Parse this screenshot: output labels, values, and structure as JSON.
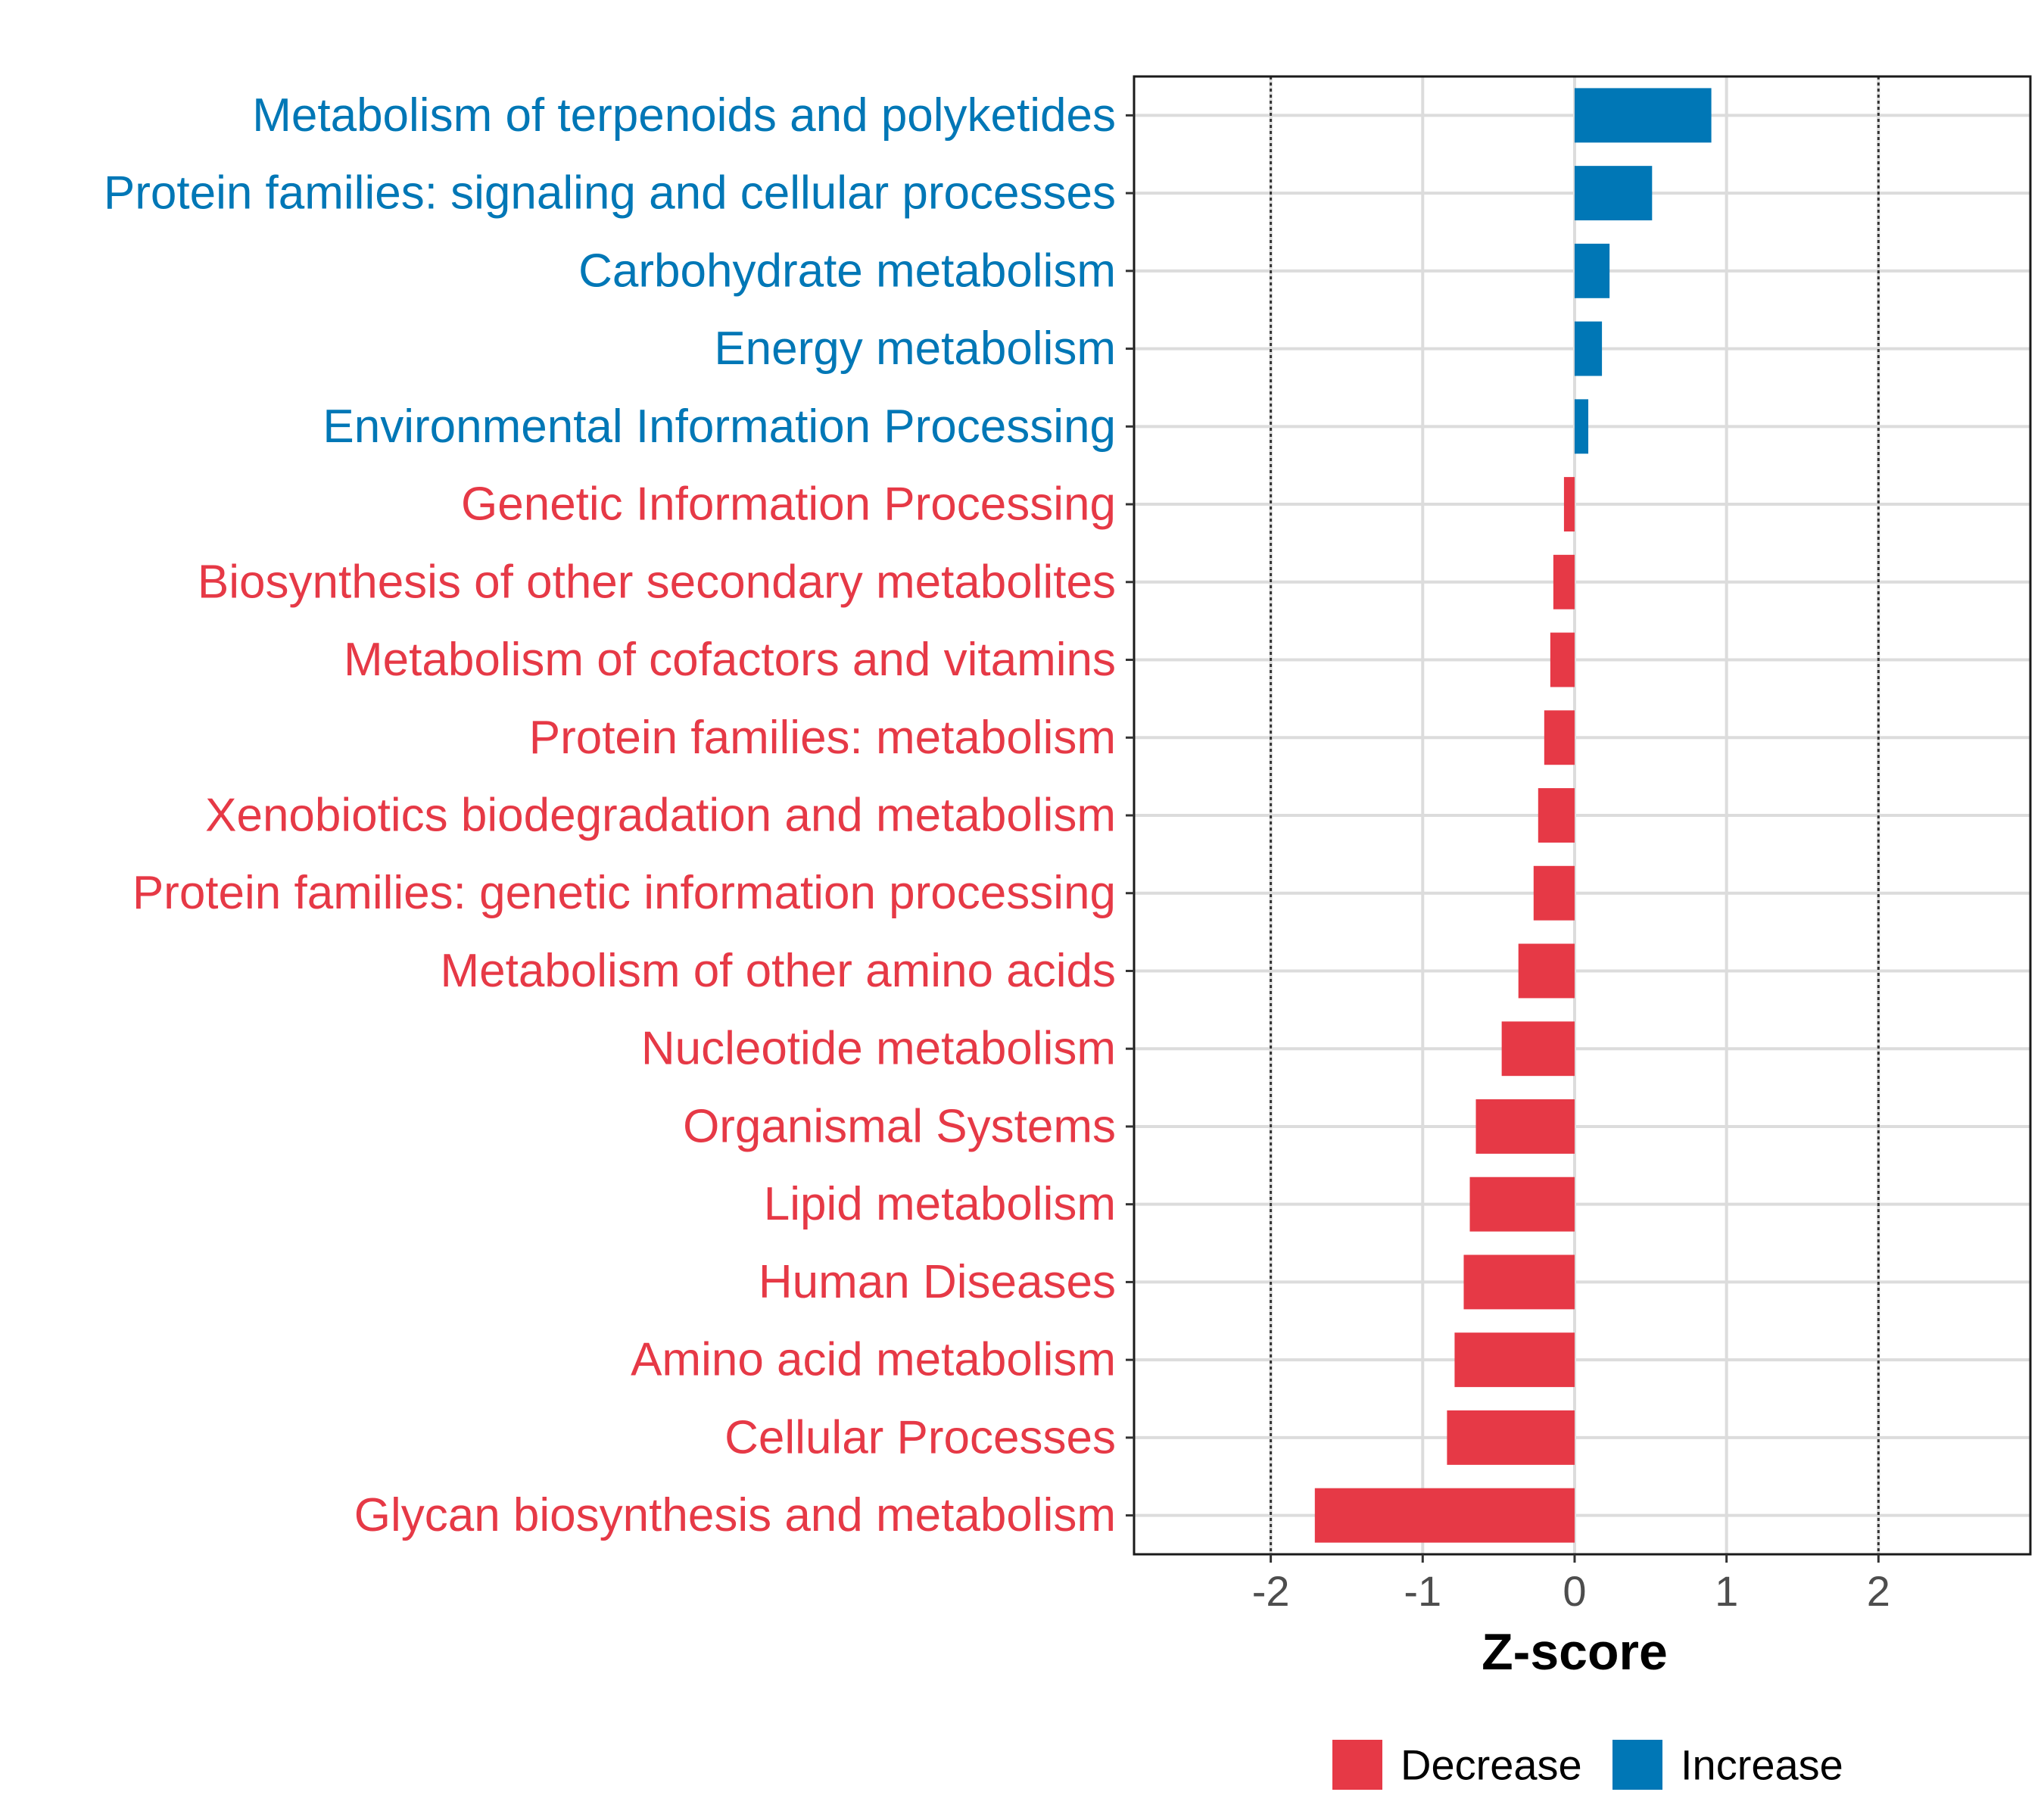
{
  "chart_data": {
    "type": "bar",
    "orientation": "horizontal",
    "title": "",
    "xlabel": "Z-score",
    "ylabel": "",
    "xlim": [
      -2.9,
      3.0
    ],
    "xticks": [
      -2,
      -1,
      0,
      1,
      2
    ],
    "xtick_labels": [
      "-2",
      "-1",
      "0",
      "1",
      "2"
    ],
    "reference_lines": [
      -2,
      2
    ],
    "grid": true,
    "colors": {
      "Decrease": "#e63946",
      "Increase": "#0077b6"
    },
    "categories": [
      "Metabolism of terpenoids and polyketides",
      "Protein families: signaling and cellular processes",
      "Carbohydrate metabolism",
      "Energy metabolism",
      "Environmental Information Processing",
      "Genetic Information Processing",
      "Biosynthesis of other secondary metabolites",
      "Metabolism of cofactors and vitamins",
      "Protein families: metabolism",
      "Xenobiotics biodegradation and metabolism",
      "Protein families: genetic information processing",
      "Metabolism of other amino acids",
      "Nucleotide metabolism",
      "Organismal Systems",
      "Lipid metabolism",
      "Human Diseases",
      "Amino acid metabolism",
      "Cellular Processes",
      "Glycan biosynthesis and metabolism"
    ],
    "values": [
      0.9,
      0.51,
      0.23,
      0.18,
      0.09,
      -0.07,
      -0.14,
      -0.16,
      -0.2,
      -0.24,
      -0.27,
      -0.37,
      -0.48,
      -0.65,
      -0.69,
      -0.73,
      -0.79,
      -0.84,
      -1.71
    ],
    "groups": [
      "Increase",
      "Increase",
      "Increase",
      "Increase",
      "Increase",
      "Decrease",
      "Decrease",
      "Decrease",
      "Decrease",
      "Decrease",
      "Decrease",
      "Decrease",
      "Decrease",
      "Decrease",
      "Decrease",
      "Decrease",
      "Decrease",
      "Decrease",
      "Decrease"
    ],
    "legend": {
      "placement": "bottom",
      "items": [
        {
          "label": "Decrease",
          "color": "#e63946"
        },
        {
          "label": "Increase",
          "color": "#0077b6"
        }
      ]
    }
  }
}
